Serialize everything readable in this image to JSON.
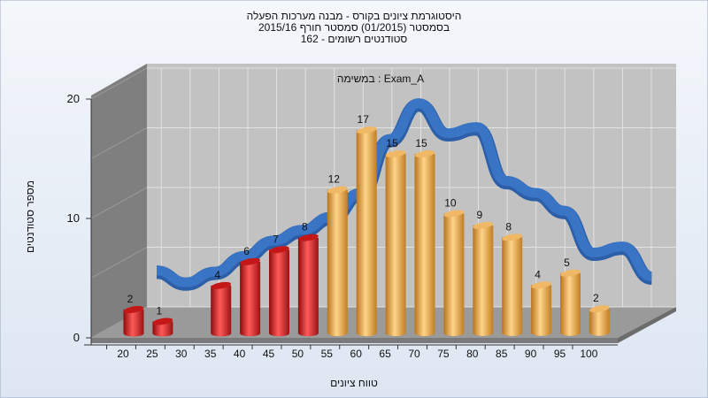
{
  "chart_data": {
    "type": "bar",
    "title_lines": [
      "היסטוגרמת ציונים בקורס - מבנה מערכות הפעלה",
      "בסמסטר  (01/2015)  סמסטר חורף 2015/16",
      "162 - סטודנטים רשומים"
    ],
    "annotation": "במשימה : Exam_A",
    "xlabel": "טווח ציונים",
    "ylabel": "מספר סטודנטים",
    "ylim": [
      0,
      20
    ],
    "y_ticks": [
      "0",
      "10",
      "20"
    ],
    "categories": [
      "20",
      "25",
      "30",
      "35",
      "40",
      "45",
      "50",
      "55",
      "60",
      "65",
      "70",
      "75",
      "80",
      "85",
      "90",
      "95",
      "100"
    ],
    "values": [
      2,
      1,
      null,
      4,
      6,
      7,
      8,
      12,
      17,
      15,
      15,
      10,
      9,
      8,
      4,
      5,
      2
    ],
    "value_labels": [
      "2",
      "1",
      "",
      "4",
      "6",
      "7",
      "8",
      "12",
      "17",
      "15",
      "15",
      "10",
      "9",
      "8",
      "4",
      "5",
      "2"
    ],
    "trend_line": [
      3.5,
      2.5,
      3.4,
      4.7,
      6.0,
      6.9,
      8.0,
      10.0,
      14.5,
      17.5,
      15.0,
      15.5,
      11.0,
      10.0,
      8.5,
      5.0,
      5.5,
      3.0
    ],
    "colors": {
      "fail_bar": "#d42020",
      "pass_bar": "#e8a440",
      "trend": "#3a74c4",
      "background": "#e7eef7"
    }
  }
}
